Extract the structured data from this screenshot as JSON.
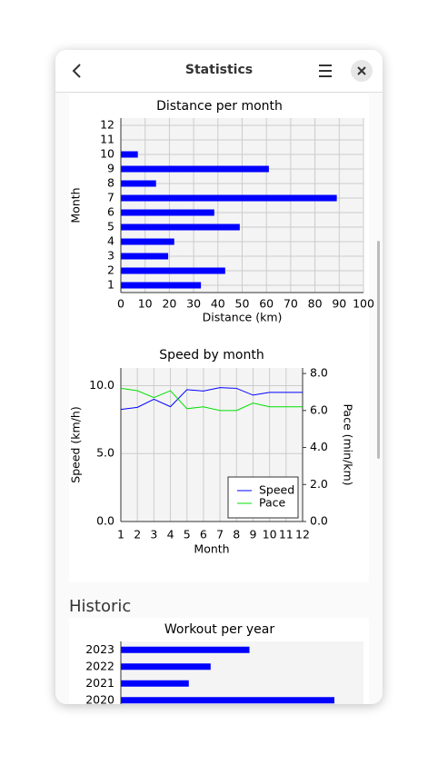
{
  "header": {
    "title": "Statistics"
  },
  "section_title": "Historic",
  "charts": [
    {
      "type": "hbar",
      "title": "Distance per month",
      "xlabel": "Distance (km)",
      "ylabel": "Month",
      "categories": [
        "1",
        "2",
        "3",
        "4",
        "5",
        "6",
        "7",
        "8",
        "9",
        "10",
        "11",
        "12"
      ],
      "values": [
        33,
        43,
        19.5,
        22,
        49,
        38.5,
        89,
        14.5,
        61,
        7,
        0,
        0
      ],
      "color": "#0000ff",
      "xlim": [
        0,
        100
      ],
      "xticks": [
        0,
        10,
        20,
        30,
        40,
        50,
        60,
        70,
        80,
        90,
        100
      ],
      "grid": true
    },
    {
      "type": "line",
      "title": "Speed by month",
      "xlabel": "Month",
      "ylabel": "Speed (km/h)",
      "y2label": "Pace (min/km)",
      "x": [
        1,
        2,
        3,
        4,
        5,
        6,
        7,
        8,
        9,
        10,
        11,
        12
      ],
      "series": [
        {
          "name": "Speed",
          "color": "#0000ff",
          "values": [
            8.25,
            8.4,
            9.0,
            8.45,
            9.7,
            9.6,
            9.85,
            9.8,
            9.3,
            9.5,
            9.5,
            9.5
          ]
        },
        {
          "name": "Pace",
          "color": "#00e000",
          "axis": "y2",
          "values": [
            7.2,
            7.07,
            6.7,
            7.07,
            6.1,
            6.2,
            6.0,
            6.0,
            6.4,
            6.2,
            6.2,
            6.2
          ]
        }
      ],
      "xlim": [
        1,
        12
      ],
      "xticks": [
        1,
        2,
        3,
        4,
        5,
        6,
        7,
        8,
        9,
        10,
        11,
        12
      ],
      "ylim": [
        0,
        11.3
      ],
      "yticks": [
        {
          "value": 0,
          "label": "0.0"
        },
        {
          "value": 5,
          "label": "5.0"
        },
        {
          "value": 10,
          "label": "10.0"
        }
      ],
      "y2lim": [
        0,
        8.3
      ],
      "y2ticks": [
        {
          "value": 0,
          "label": "0.0"
        },
        {
          "value": 2,
          "label": "2.0"
        },
        {
          "value": 4,
          "label": "4.0"
        },
        {
          "value": 6,
          "label": "6.0"
        },
        {
          "value": 8,
          "label": "8.0"
        }
      ],
      "grid": true,
      "legend": "lower right"
    },
    {
      "type": "hbar",
      "title": "Workout per year",
      "categories": [
        "2020",
        "2021",
        "2022",
        "2023"
      ],
      "values": [
        88,
        28,
        37,
        53
      ],
      "color": "#0000ff",
      "xlim": [
        0,
        100
      ]
    }
  ]
}
